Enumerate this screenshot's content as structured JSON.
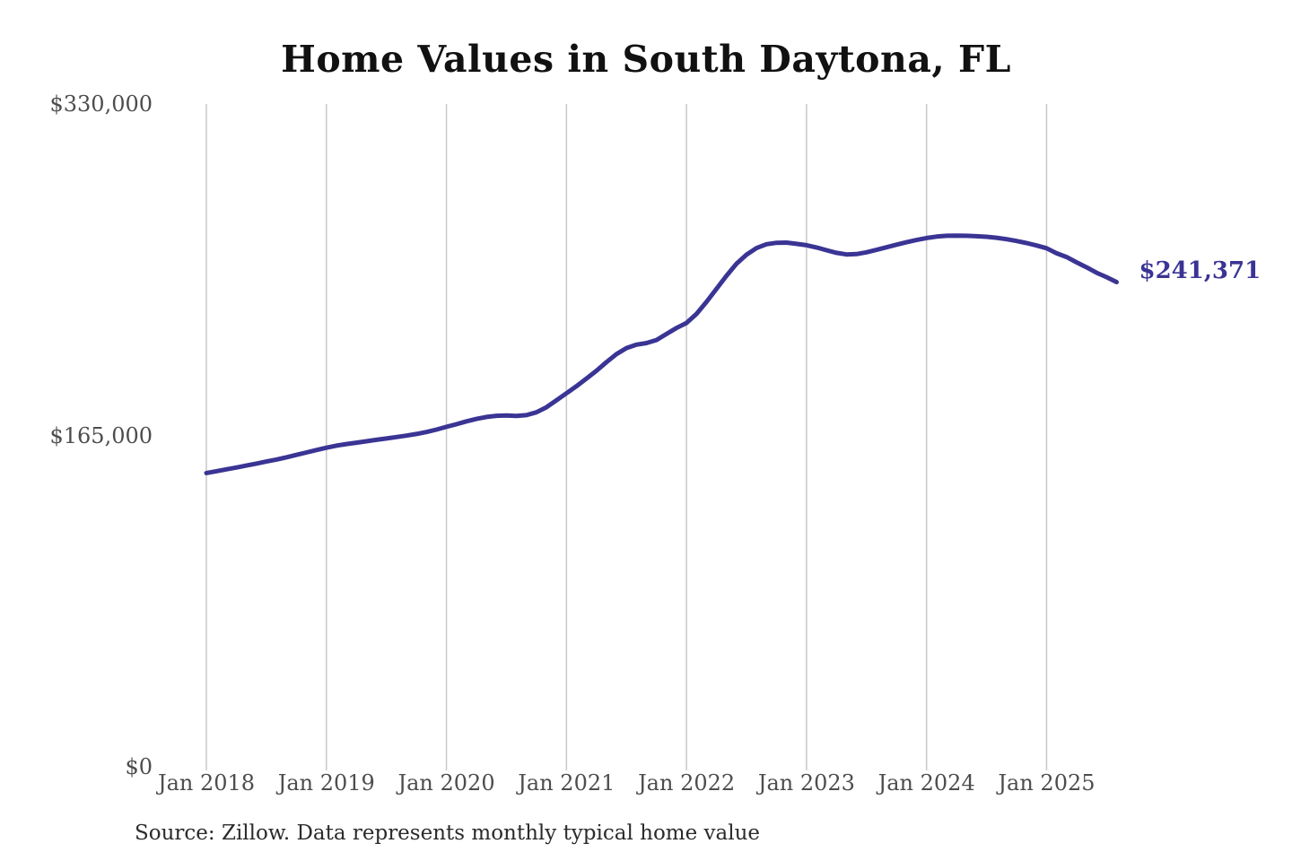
{
  "chart": {
    "title": "Home Values in South Daytona, FL",
    "end_label": "$241,371",
    "source": "Source: Zillow. Data represents monthly typical home value",
    "colors": {
      "line": "#3a3494",
      "grid": "#c8c8c8",
      "tick_text": "#4d4d4d",
      "title_text": "#111111",
      "source_text": "#2b2b2b",
      "background": "#ffffff"
    }
  },
  "chart_data": {
    "type": "line",
    "title": "Home Values in South Daytona, FL",
    "xlabel": "",
    "ylabel": "",
    "ylim": [
      0,
      330000
    ],
    "grid": "vertical-only",
    "legend": "none",
    "frequency": "monthly",
    "x_start": "Jan 2018",
    "x_end": "Aug 2025",
    "x_ticks": [
      "Jan 2018",
      "Jan 2019",
      "Jan 2020",
      "Jan 2021",
      "Jan 2022",
      "Jan 2023",
      "Jan 2024",
      "Jan 2025"
    ],
    "y_ticks": [
      {
        "label": "$330,000",
        "value": 330000
      },
      {
        "label": "$165,000",
        "value": 165000
      },
      {
        "label": "$0",
        "value": 0
      }
    ],
    "final_value": 241371,
    "annotation": "$241,371",
    "series": [
      {
        "name": "Typical home value",
        "values": [
          146300,
          147200,
          148100,
          149000,
          150000,
          151000,
          152000,
          153000,
          154100,
          155300,
          156500,
          157700,
          158900,
          159900,
          160700,
          161400,
          162100,
          162800,
          163500,
          164200,
          164900,
          165700,
          166700,
          167900,
          169300,
          170600,
          172000,
          173200,
          174200,
          174800,
          174900,
          174700,
          175100,
          176500,
          179000,
          182500,
          186000,
          189500,
          193300,
          197200,
          201500,
          205500,
          208500,
          210200,
          211000,
          212500,
          215500,
          218500,
          221000,
          225500,
          231500,
          238000,
          244500,
          250500,
          255000,
          258300,
          260200,
          260900,
          261000,
          260400,
          259700,
          258600,
          257200,
          255900,
          255100,
          255300,
          256200,
          257400,
          258700,
          260000,
          261200,
          262300,
          263300,
          264000,
          264400,
          264500,
          264400,
          264200,
          263900,
          263400,
          262700,
          261800,
          260800,
          259600,
          258200,
          255700,
          253800,
          251200,
          248700,
          246000,
          243800,
          241371
        ]
      }
    ]
  }
}
